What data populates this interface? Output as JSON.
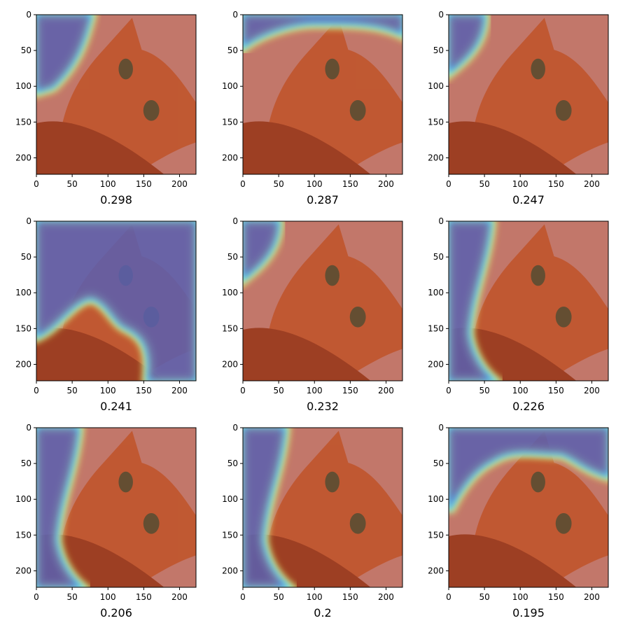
{
  "chart_data": {
    "type": "heatmap",
    "description_free": true,
    "image_extent": [
      0,
      223
    ],
    "xticks": [
      "0",
      "50",
      "100",
      "150",
      "200"
    ],
    "yticks": [
      "0",
      "50",
      "100",
      "150",
      "200"
    ],
    "xtick_values": [
      0,
      50,
      100,
      150,
      200
    ],
    "ytick_values": [
      0,
      50,
      100,
      150,
      200
    ],
    "colors": {
      "background": "#c2776a",
      "cat_fur": "#c0552c",
      "cat_fur_dark": "#9a3a1c",
      "overlay_low": "#5a5fb0",
      "overlay_high": "#c2776a",
      "band_cyan": "#5fe0ff",
      "band_yellow": "#ffe34a",
      "axis": "#000000"
    },
    "panels": [
      {
        "caption": "0.298",
        "low_region": "top-left",
        "colormap": "jet"
      },
      {
        "caption": "0.287",
        "low_region": "top-edge",
        "colormap": "jet"
      },
      {
        "caption": "0.247",
        "low_region": "top-left-corner",
        "colormap": "jet"
      },
      {
        "caption": "0.241",
        "low_region": "upper-majority",
        "colormap": "jet"
      },
      {
        "caption": "0.232",
        "low_region": "top-left-corner",
        "colormap": "jet"
      },
      {
        "caption": "0.226",
        "low_region": "left-band",
        "colormap": "jet"
      },
      {
        "caption": "0.206",
        "low_region": "left-band",
        "colormap": "jet"
      },
      {
        "caption": "0.2",
        "low_region": "left-band",
        "colormap": "jet"
      },
      {
        "caption": "0.195",
        "low_region": "top-band",
        "colormap": "jet"
      }
    ]
  }
}
